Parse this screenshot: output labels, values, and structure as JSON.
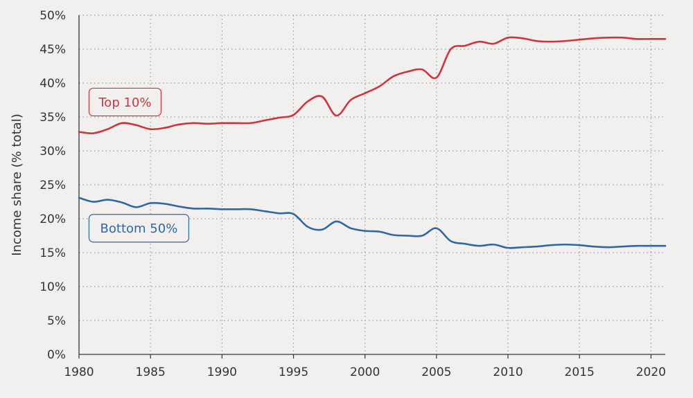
{
  "chart_data": {
    "type": "line",
    "title": "",
    "xlabel": "",
    "ylabel": "Income share (% total)",
    "xlim": [
      1980,
      2021
    ],
    "ylim": [
      0,
      50
    ],
    "x_ticks": [
      "1980",
      "1985",
      "1990",
      "1995",
      "2000",
      "2005",
      "2010",
      "2015",
      "2020"
    ],
    "y_ticks": [
      "0%",
      "5%",
      "10%",
      "15%",
      "20%",
      "25%",
      "30%",
      "35%",
      "40%",
      "45%",
      "50%"
    ],
    "grid": true,
    "legend": "none",
    "x": [
      1980,
      1981,
      1982,
      1983,
      1984,
      1985,
      1986,
      1987,
      1988,
      1989,
      1990,
      1991,
      1992,
      1993,
      1994,
      1995,
      1996,
      1997,
      1998,
      1999,
      2000,
      2001,
      2002,
      2003,
      2004,
      2005,
      2006,
      2007,
      2008,
      2009,
      2010,
      2011,
      2012,
      2013,
      2014,
      2015,
      2016,
      2017,
      2018,
      2019,
      2020,
      2021
    ],
    "series": [
      {
        "name": "Top 10%",
        "color": "#d1333d",
        "values": [
          32.8,
          32.6,
          33.2,
          34.1,
          33.8,
          33.2,
          33.4,
          33.9,
          34.1,
          34.0,
          34.1,
          34.1,
          34.1,
          34.5,
          34.9,
          35.3,
          37.3,
          38.0,
          35.2,
          37.5,
          38.5,
          39.5,
          41.0,
          41.7,
          42.0,
          40.8,
          45.0,
          45.5,
          46.1,
          45.8,
          46.7,
          46.6,
          46.2,
          46.1,
          46.2,
          46.4,
          46.6,
          46.7,
          46.7,
          46.5,
          46.5,
          46.5
        ]
      },
      {
        "name": "Bottom 50%",
        "color": "#2e68a4",
        "values": [
          23.1,
          22.5,
          22.8,
          22.4,
          21.7,
          22.3,
          22.2,
          21.8,
          21.5,
          21.5,
          21.4,
          21.4,
          21.4,
          21.1,
          20.8,
          20.7,
          18.8,
          18.4,
          19.6,
          18.6,
          18.2,
          18.1,
          17.6,
          17.5,
          17.5,
          18.6,
          16.7,
          16.3,
          16.0,
          16.2,
          15.7,
          15.8,
          15.9,
          16.1,
          16.2,
          16.1,
          15.9,
          15.8,
          15.9,
          16.0,
          16.0,
          16.0
        ]
      }
    ]
  }
}
